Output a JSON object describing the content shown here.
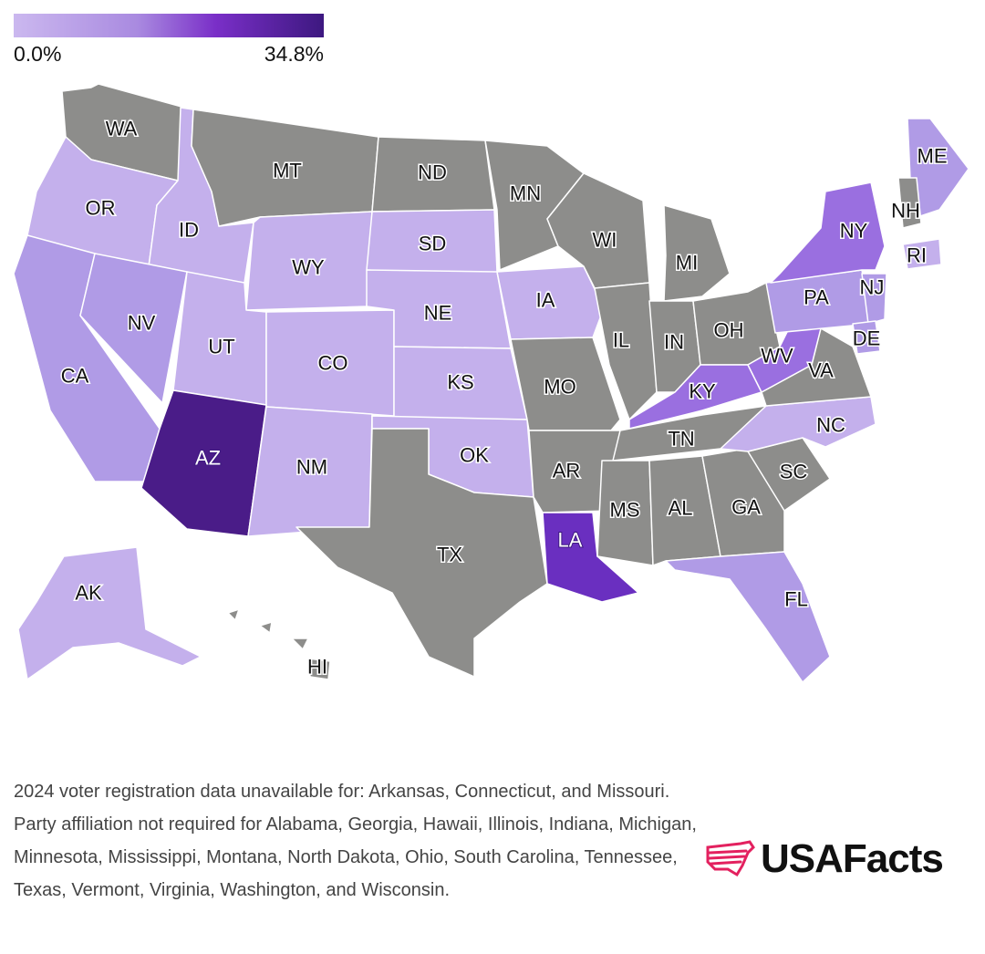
{
  "legend": {
    "min_label": "0.0%",
    "max_label": "34.8%",
    "min_value": 0.0,
    "max_value": 34.8,
    "colors": [
      "#cbb8ef",
      "#a98ae0",
      "#7a2fc8",
      "#3d1880"
    ]
  },
  "no_data_color": "#8d8d8b",
  "states": [
    {
      "abbr": "WA",
      "bucket": "no-data"
    },
    {
      "abbr": "OR",
      "bucket": "low"
    },
    {
      "abbr": "CA",
      "bucket": "mid-low"
    },
    {
      "abbr": "ID",
      "bucket": "low"
    },
    {
      "abbr": "NV",
      "bucket": "mid-low"
    },
    {
      "abbr": "MT",
      "bucket": "no-data"
    },
    {
      "abbr": "WY",
      "bucket": "low"
    },
    {
      "abbr": "UT",
      "bucket": "low"
    },
    {
      "abbr": "AZ",
      "bucket": "highest"
    },
    {
      "abbr": "CO",
      "bucket": "low"
    },
    {
      "abbr": "NM",
      "bucket": "low"
    },
    {
      "abbr": "ND",
      "bucket": "no-data"
    },
    {
      "abbr": "SD",
      "bucket": "low"
    },
    {
      "abbr": "NE",
      "bucket": "low"
    },
    {
      "abbr": "KS",
      "bucket": "low"
    },
    {
      "abbr": "OK",
      "bucket": "low"
    },
    {
      "abbr": "TX",
      "bucket": "no-data"
    },
    {
      "abbr": "MN",
      "bucket": "no-data"
    },
    {
      "abbr": "IA",
      "bucket": "low"
    },
    {
      "abbr": "MO",
      "bucket": "no-data"
    },
    {
      "abbr": "AR",
      "bucket": "no-data"
    },
    {
      "abbr": "LA",
      "bucket": "high"
    },
    {
      "abbr": "WI",
      "bucket": "no-data"
    },
    {
      "abbr": "IL",
      "bucket": "no-data"
    },
    {
      "abbr": "MI",
      "bucket": "no-data"
    },
    {
      "abbr": "IN",
      "bucket": "no-data"
    },
    {
      "abbr": "OH",
      "bucket": "no-data"
    },
    {
      "abbr": "KY",
      "bucket": "mid"
    },
    {
      "abbr": "TN",
      "bucket": "no-data"
    },
    {
      "abbr": "MS",
      "bucket": "no-data"
    },
    {
      "abbr": "AL",
      "bucket": "no-data"
    },
    {
      "abbr": "GA",
      "bucket": "no-data"
    },
    {
      "abbr": "FL",
      "bucket": "mid-low"
    },
    {
      "abbr": "SC",
      "bucket": "no-data"
    },
    {
      "abbr": "NC",
      "bucket": "low"
    },
    {
      "abbr": "VA",
      "bucket": "no-data"
    },
    {
      "abbr": "WV",
      "bucket": "mid"
    },
    {
      "abbr": "PA",
      "bucket": "mid-low"
    },
    {
      "abbr": "NY",
      "bucket": "mid"
    },
    {
      "abbr": "NJ",
      "bucket": "mid-low"
    },
    {
      "abbr": "DE",
      "bucket": "mid-low"
    },
    {
      "abbr": "ME",
      "bucket": "mid-low"
    },
    {
      "abbr": "NH",
      "bucket": "no-data"
    },
    {
      "abbr": "RI",
      "bucket": "low"
    },
    {
      "abbr": "AK",
      "bucket": "low"
    },
    {
      "abbr": "HI",
      "bucket": "no-data"
    }
  ],
  "bucket_colors": {
    "no-data": "#8d8d8b",
    "low": "#c4b0ec",
    "mid-low": "#b09be6",
    "mid": "#9a6fe0",
    "high": "#6a2fc0",
    "highest": "#4a1c88"
  },
  "footnote": "2024 voter registration data unavailable for: Arkansas, Connecticut, and Missouri. Party affiliation not required for Alabama, Georgia, Hawaii, Illinois, Indiana, Michigan, Minnesota, Mississippi, Montana, North Dakota, Ohio, South Carolina, Tennessee, Texas, Vermont, Virginia, Washington, and Wisconsin.",
  "logo": {
    "text": "USAFacts",
    "icon": "usafacts-flag-map-icon",
    "color": "#e3215f"
  }
}
